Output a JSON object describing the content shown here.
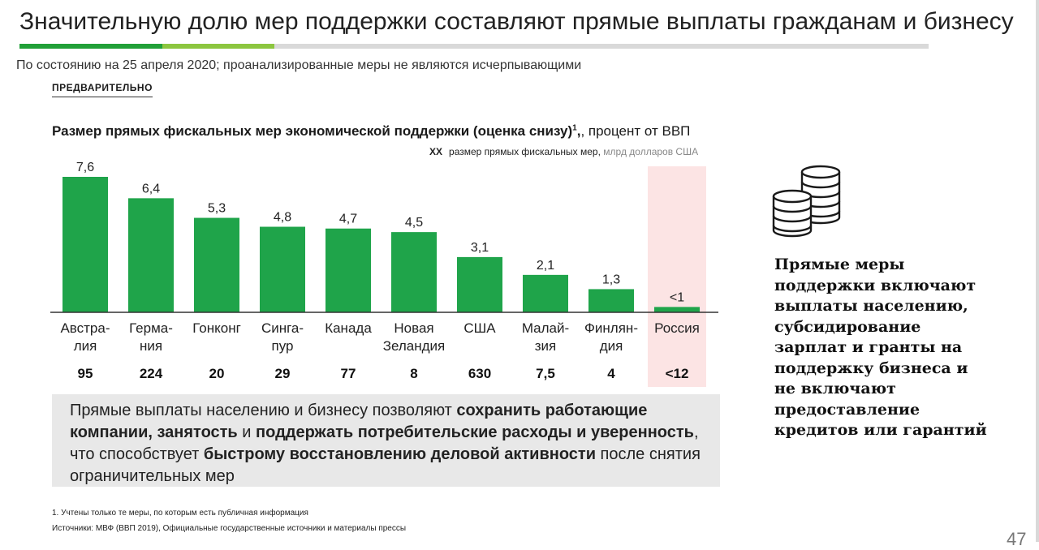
{
  "header": {
    "title": "Значительную долю мер поддержки составляют прямые выплаты гражданам и бизнесу",
    "subtitle": "По состоянию на 25 апреля 2020; проанализированные меры не являются исчерпывающими",
    "tag": "ПРЕДВАРИТЕЛЬНО",
    "accent_colors": [
      "#21a038",
      "#8cc63f",
      "#d9d9d9"
    ]
  },
  "chart_title": {
    "bold": "Размер прямых фискальных мер экономической поддержки (оценка снизу)",
    "sup": "1",
    "rest": ", процент от ВВП"
  },
  "legend": {
    "symbol": "XX",
    "text": "размер прямых фискальных мер,",
    "unit": "млрд долларов США"
  },
  "chart_data": {
    "type": "bar",
    "categories": [
      [
        "Австра-",
        "лия"
      ],
      [
        "Герма-",
        "ния"
      ],
      [
        "Гонконг"
      ],
      [
        "Синга-",
        "пур"
      ],
      [
        "Канада"
      ],
      [
        "Новая",
        "Зеландия"
      ],
      [
        "США"
      ],
      [
        "Малай-",
        "зия"
      ],
      [
        "Финлян-",
        "дия"
      ],
      [
        "Россия"
      ]
    ],
    "values": [
      7.6,
      6.4,
      5.3,
      4.8,
      4.7,
      4.5,
      3.1,
      2.1,
      1.3,
      0.3
    ],
    "value_labels": [
      "7,6",
      "6,4",
      "5,3",
      "4,8",
      "4,7",
      "4,5",
      "3,1",
      "2,1",
      "1,3",
      "<1"
    ],
    "absolute_labels": [
      "95",
      "224",
      "20",
      "29",
      "77",
      "8",
      "630",
      "7,5",
      "4",
      "<12"
    ],
    "highlight_index": 9,
    "ylim": [
      0,
      7.6
    ],
    "grid": false,
    "colors": {
      "bar": "#1fa44a",
      "highlight_bg": "#fce4e4",
      "axis": "#333333"
    }
  },
  "callout": {
    "segments": [
      {
        "text": "Прямые выплаты населению и бизнесу позволяют ",
        "bold": false
      },
      {
        "text": "сохранить работающие компании, занятость",
        "bold": true
      },
      {
        "text": " и ",
        "bold": false
      },
      {
        "text": "поддержать потребительские расходы и уверенность",
        "bold": true
      },
      {
        "text": ", что способствует ",
        "bold": false
      },
      {
        "text": "быстрому восстановлению деловой активности",
        "bold": true
      },
      {
        "text": " после снятия ограничительных мер",
        "bold": false
      }
    ]
  },
  "side": {
    "icon": "coins-stack-icon",
    "text": "Прямые меры поддержки включают выплаты населению, субсидирование зарплат и гранты на поддержку бизнеса и не включают предоставление кредитов или гарантий"
  },
  "footnotes": {
    "note1": "1. Учтены только те меры, по которым есть публичная информация",
    "sources": "Источники: МВФ (ВВП 2019), Официальные государственные источники и материалы прессы"
  },
  "page_number": "47"
}
